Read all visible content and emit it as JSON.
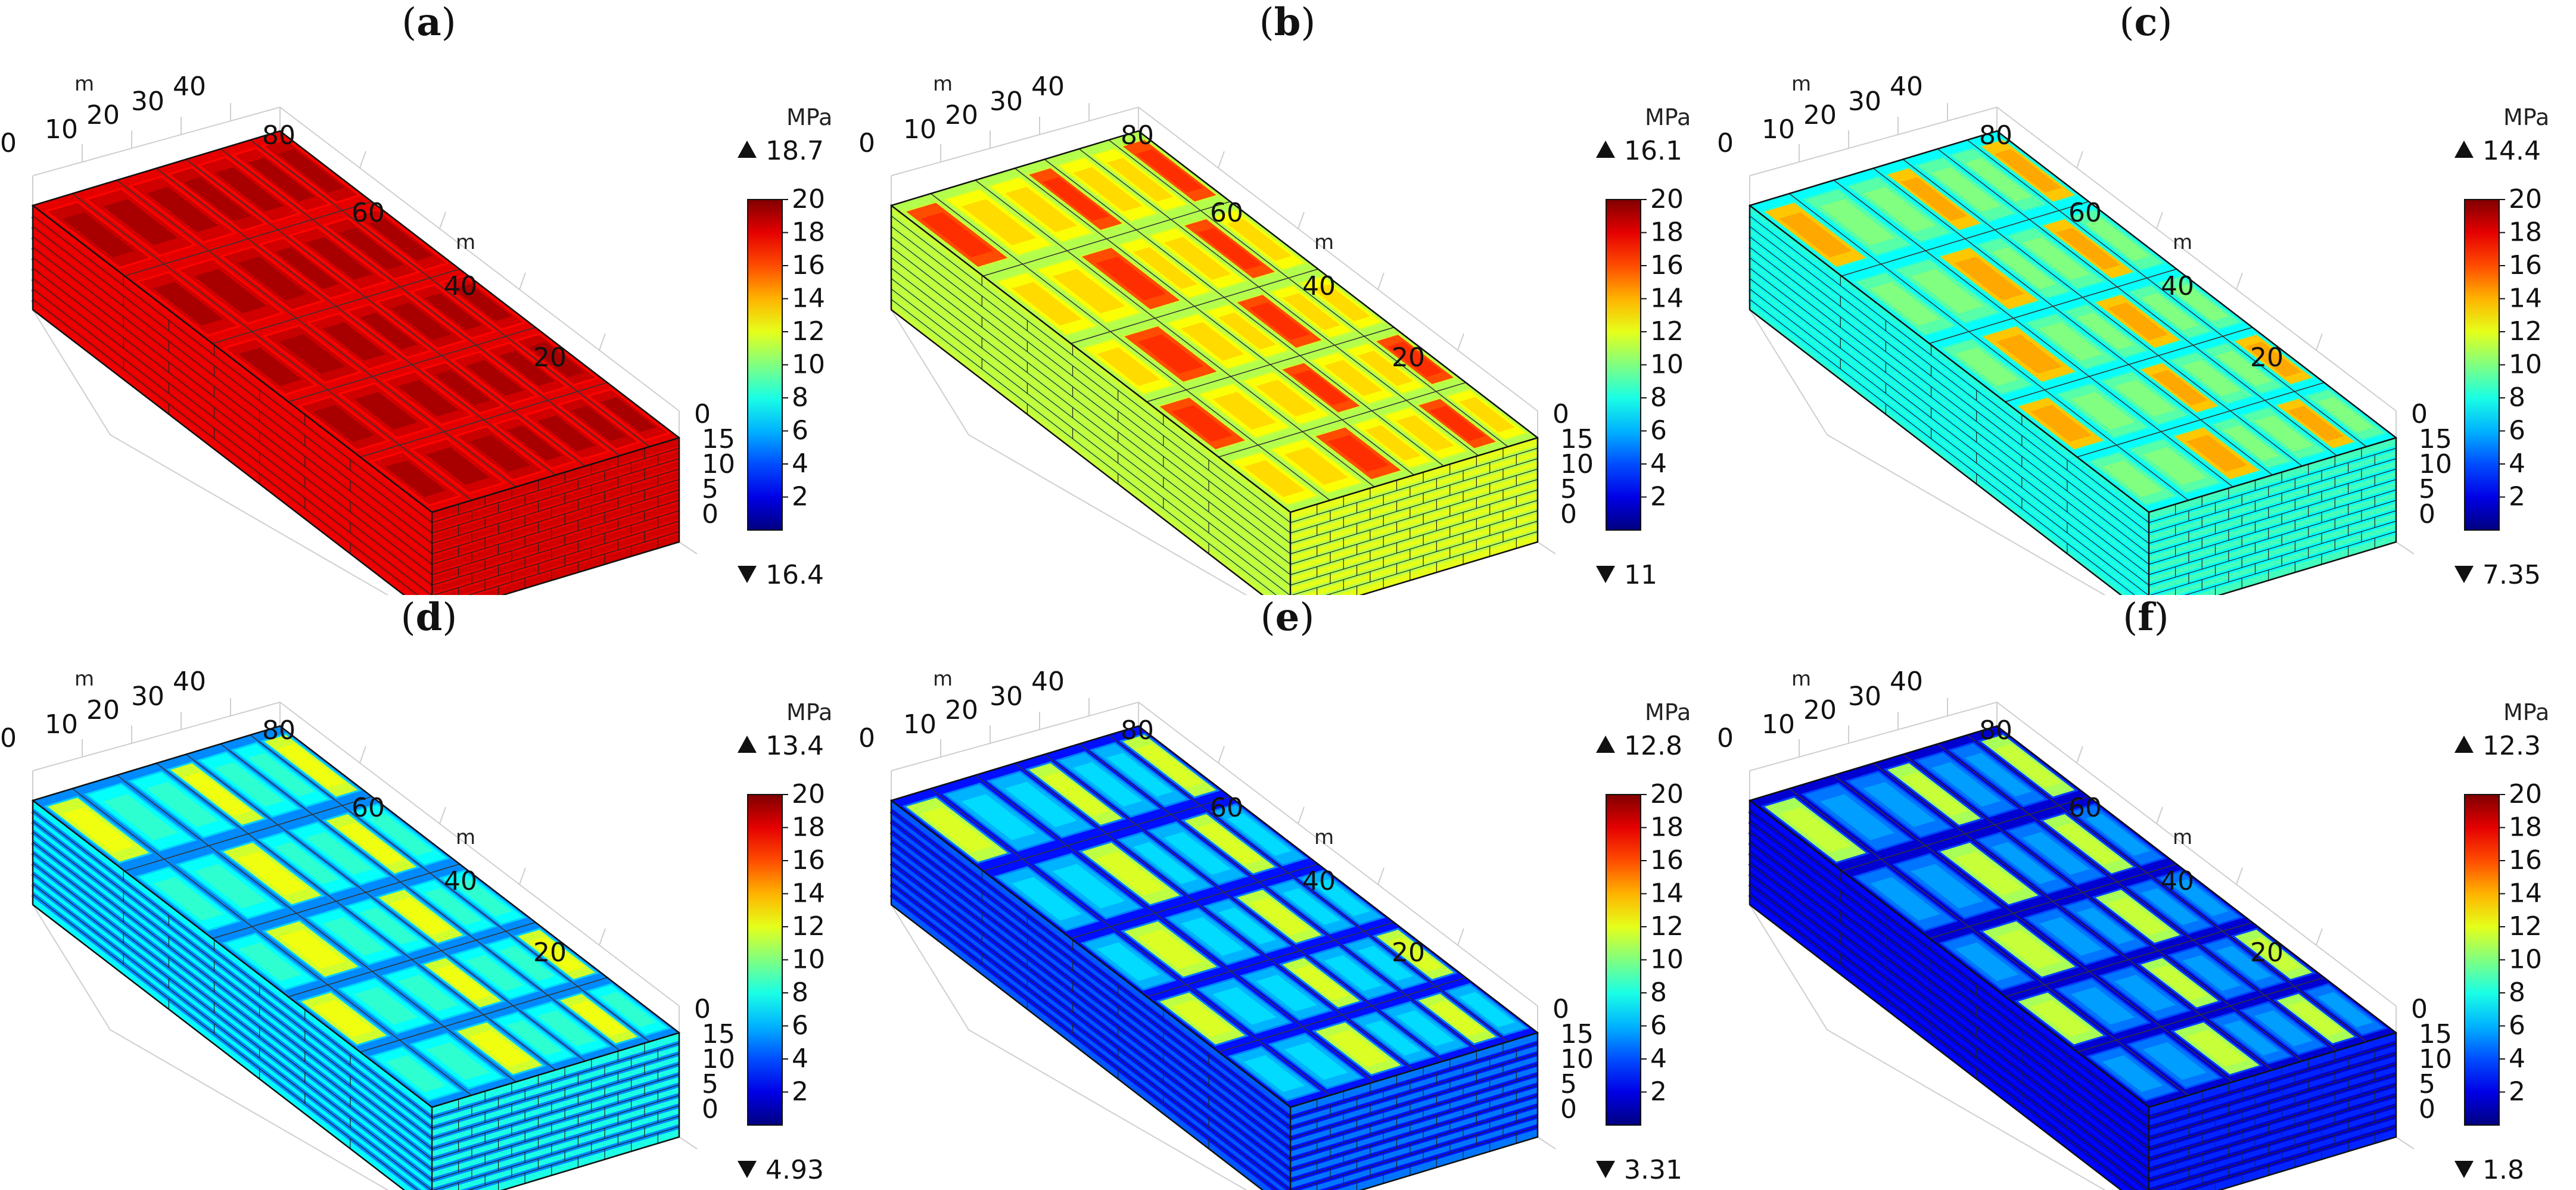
{
  "figure": {
    "panels": [
      {
        "label": "a",
        "unit": "MPa",
        "max": "18.7",
        "min": "16.4",
        "c_wall": 0.92,
        "c_top": 0.92,
        "c_cell": 0.93,
        "c_line": 0.9
      },
      {
        "label": "b",
        "unit": "MPa",
        "max": "16.1",
        "min": "11",
        "c_wall": 0.6,
        "c_top": 0.62,
        "c_cell": 0.8,
        "c_line": 0.55
      },
      {
        "label": "c",
        "unit": "MPa",
        "max": "14.4",
        "min": "7.35",
        "c_wall": 0.44,
        "c_top": 0.46,
        "c_cell": 0.68,
        "c_line": 0.38
      },
      {
        "label": "d",
        "unit": "MPa",
        "max": "13.4",
        "min": "4.93",
        "c_wall": 0.4,
        "c_top": 0.38,
        "c_cell": 0.58,
        "c_line": 0.26
      },
      {
        "label": "e",
        "unit": "MPa",
        "max": "12.8",
        "min": "3.31",
        "c_wall": 0.24,
        "c_top": 0.3,
        "c_cell": 0.56,
        "c_line": 0.14
      },
      {
        "label": "f",
        "unit": "MPa",
        "max": "12.3",
        "min": "1.8",
        "c_wall": 0.16,
        "c_top": 0.24,
        "c_cell": 0.54,
        "c_line": 0.08
      }
    ],
    "axis_unit": "m",
    "x_ticks": [
      "0",
      "10",
      "20",
      "30",
      "40"
    ],
    "y_ticks": [
      "80",
      "60",
      "40",
      "20",
      "0"
    ],
    "z_ticks": [
      "15",
      "10",
      "5",
      "0"
    ],
    "colorbar_ticks": [
      "20",
      "18",
      "16",
      "14",
      "12",
      "10",
      "8",
      "6",
      "4",
      "2"
    ]
  }
}
